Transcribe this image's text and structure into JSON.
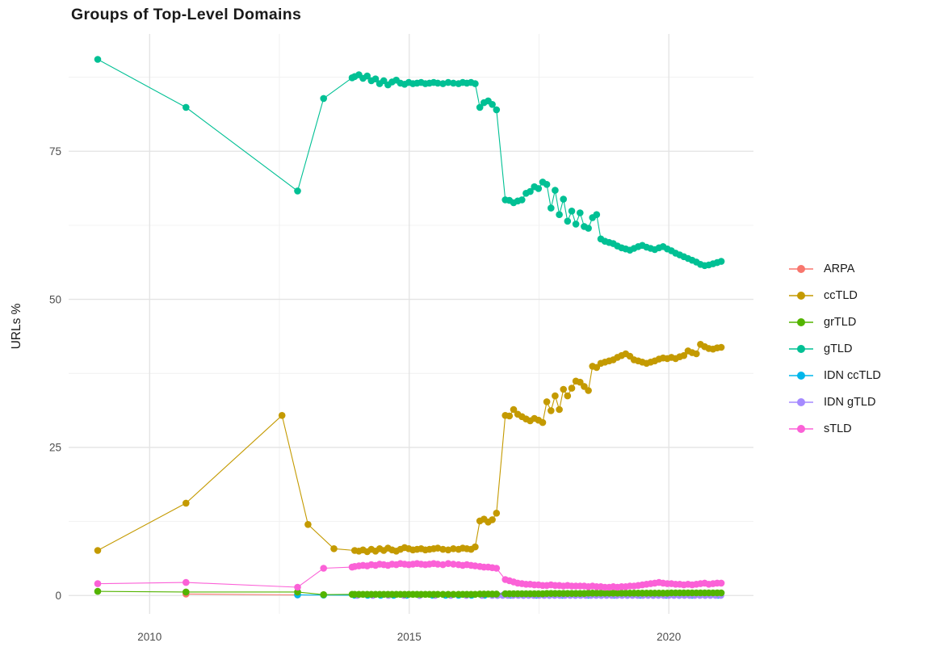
{
  "chart_data": {
    "type": "line",
    "title": "Groups of Top-Level Domains",
    "xlabel": "",
    "ylabel": "URLs %",
    "legend_position": "right",
    "grid": true,
    "x_tick_values": [
      2010,
      2015,
      2020
    ],
    "x_tick_labels": [
      "2010",
      "2015",
      "2020"
    ],
    "x_minor_ticks": [
      2012.5,
      2017.5
    ],
    "y_tick_values": [
      0,
      25,
      50,
      75
    ],
    "y_tick_labels": [
      "0",
      "25",
      "50",
      "75"
    ],
    "y_minor_ticks": [
      12.5,
      37.5,
      62.5,
      87.5
    ],
    "xlim": [
      2008.44,
      2021.63
    ],
    "ylim": [
      -3.1,
      94.8
    ],
    "draw_order": [
      0,
      4,
      5,
      1,
      2,
      3,
      6
    ],
    "series": [
      {
        "name": "ARPA",
        "color": "#F8766D",
        "x": [
          2010.7,
          2012.85
        ],
        "y": [
          0.25,
          0.1
        ]
      },
      {
        "name": "ccTLD",
        "color": "#C49A00",
        "x": [
          2009.0,
          2010.7,
          2012.55,
          2013.05,
          2013.55,
          2013.95,
          2014.03,
          2014.11,
          2014.19,
          2014.27,
          2014.35,
          2014.43,
          2014.51,
          2014.59,
          2014.67,
          2014.75,
          2014.83,
          2014.91,
          2014.99,
          2015.07,
          2015.15,
          2015.23,
          2015.31,
          2015.39,
          2015.47,
          2015.55,
          2015.65,
          2015.75,
          2015.85,
          2015.95,
          2016.03,
          2016.11,
          2016.19,
          2016.27,
          2016.36,
          2016.44,
          2016.52,
          2016.6,
          2016.68,
          2016.85,
          2016.93,
          2017.01,
          2017.09,
          2017.17,
          2017.25,
          2017.33,
          2017.41,
          2017.49,
          2017.57,
          2017.65,
          2017.73,
          2017.81,
          2017.89,
          2017.97,
          2018.05,
          2018.13,
          2018.21,
          2018.29,
          2018.37,
          2018.45,
          2018.53,
          2018.61,
          2018.69,
          2018.77,
          2018.85,
          2018.93,
          2019.01,
          2019.09,
          2019.17,
          2019.25,
          2019.33,
          2019.41,
          2019.49,
          2019.57,
          2019.65,
          2019.73,
          2019.81,
          2019.89,
          2019.97,
          2020.05,
          2020.13,
          2020.21,
          2020.29,
          2020.37,
          2020.45,
          2020.53,
          2020.61,
          2020.69,
          2020.77,
          2020.85,
          2020.93,
          2021.01
        ],
        "y": [
          7.6,
          15.6,
          30.4,
          12.0,
          7.9,
          7.6,
          7.5,
          7.7,
          7.4,
          7.8,
          7.5,
          7.9,
          7.6,
          8.0,
          7.7,
          7.5,
          7.8,
          8.1,
          7.9,
          7.7,
          7.8,
          7.9,
          7.7,
          7.8,
          7.9,
          8.0,
          7.8,
          7.7,
          7.9,
          7.8,
          8.0,
          7.9,
          7.8,
          8.2,
          12.6,
          12.9,
          12.4,
          12.8,
          13.9,
          30.4,
          30.3,
          31.4,
          30.6,
          30.2,
          29.8,
          29.5,
          29.9,
          29.6,
          29.2,
          32.7,
          31.2,
          33.7,
          31.4,
          34.8,
          33.7,
          35.0,
          36.2,
          36.0,
          35.3,
          34.6,
          38.7,
          38.5,
          39.2,
          39.4,
          39.6,
          39.8,
          40.2,
          40.5,
          40.8,
          40.4,
          39.8,
          39.6,
          39.4,
          39.2,
          39.4,
          39.6,
          39.9,
          40.1,
          40.0,
          40.2,
          40.0,
          40.3,
          40.5,
          41.3,
          41.0,
          40.8,
          42.4,
          42.0,
          41.7,
          41.6,
          41.8,
          41.9
        ]
      },
      {
        "name": "grTLD",
        "color": "#53B400",
        "x": [
          2009.0,
          2010.7,
          2012.85,
          2013.35,
          2013.9,
          2013.95,
          2014.03,
          2014.11,
          2014.19,
          2014.27,
          2014.35,
          2014.43,
          2014.51,
          2014.59,
          2014.67,
          2014.75,
          2014.83,
          2014.91,
          2014.99,
          2015.07,
          2015.15,
          2015.23,
          2015.31,
          2015.39,
          2015.47,
          2015.55,
          2015.65,
          2015.75,
          2015.85,
          2015.95,
          2016.03,
          2016.11,
          2016.19,
          2016.27,
          2016.36,
          2016.44,
          2016.52,
          2016.6,
          2016.68,
          2016.85,
          2016.93,
          2017.01,
          2017.09,
          2017.17,
          2017.25,
          2017.33,
          2017.41,
          2017.49,
          2017.57,
          2017.65,
          2017.73,
          2017.81,
          2017.89,
          2017.97,
          2018.05,
          2018.13,
          2018.21,
          2018.29,
          2018.37,
          2018.45,
          2018.53,
          2018.61,
          2018.69,
          2018.77,
          2018.85,
          2018.93,
          2019.01,
          2019.09,
          2019.17,
          2019.25,
          2019.33,
          2019.41,
          2019.49,
          2019.57,
          2019.65,
          2019.73,
          2019.81,
          2019.89,
          2019.97,
          2020.05,
          2020.13,
          2020.21,
          2020.29,
          2020.37,
          2020.45,
          2020.53,
          2020.61,
          2020.69,
          2020.77,
          2020.85,
          2020.93,
          2021.01
        ],
        "y": [
          0.7,
          0.6,
          0.6,
          0.15,
          0.2,
          0.2,
          0.2,
          0.2,
          0.2,
          0.2,
          0.2,
          0.2,
          0.2,
          0.2,
          0.2,
          0.2,
          0.2,
          0.2,
          0.2,
          0.2,
          0.2,
          0.2,
          0.2,
          0.2,
          0.2,
          0.2,
          0.2,
          0.2,
          0.2,
          0.2,
          0.2,
          0.2,
          0.2,
          0.2,
          0.25,
          0.25,
          0.25,
          0.25,
          0.25,
          0.3,
          0.3,
          0.3,
          0.3,
          0.3,
          0.3,
          0.3,
          0.3,
          0.3,
          0.3,
          0.35,
          0.35,
          0.35,
          0.35,
          0.35,
          0.35,
          0.35,
          0.35,
          0.35,
          0.35,
          0.4,
          0.4,
          0.4,
          0.4,
          0.4,
          0.4,
          0.4,
          0.4,
          0.4,
          0.4,
          0.4,
          0.4,
          0.4,
          0.4,
          0.4,
          0.4,
          0.4,
          0.4,
          0.4,
          0.4,
          0.45,
          0.45,
          0.45,
          0.45,
          0.45,
          0.45,
          0.45,
          0.45,
          0.45,
          0.45,
          0.45,
          0.45,
          0.45
        ]
      },
      {
        "name": "gTLD",
        "color": "#00C094",
        "x": [
          2009.0,
          2010.7,
          2012.85,
          2013.35,
          2013.9,
          2013.95,
          2014.03,
          2014.11,
          2014.19,
          2014.27,
          2014.35,
          2014.43,
          2014.51,
          2014.59,
          2014.67,
          2014.75,
          2014.83,
          2014.91,
          2014.99,
          2015.07,
          2015.15,
          2015.23,
          2015.31,
          2015.39,
          2015.47,
          2015.55,
          2015.65,
          2015.75,
          2015.85,
          2015.95,
          2016.03,
          2016.11,
          2016.19,
          2016.27,
          2016.36,
          2016.44,
          2016.52,
          2016.6,
          2016.68,
          2016.85,
          2016.93,
          2017.01,
          2017.09,
          2017.17,
          2017.25,
          2017.33,
          2017.41,
          2017.49,
          2017.57,
          2017.65,
          2017.73,
          2017.81,
          2017.89,
          2017.97,
          2018.05,
          2018.13,
          2018.21,
          2018.29,
          2018.37,
          2018.45,
          2018.53,
          2018.61,
          2018.69,
          2018.77,
          2018.85,
          2018.93,
          2019.01,
          2019.09,
          2019.17,
          2019.25,
          2019.33,
          2019.41,
          2019.49,
          2019.57,
          2019.65,
          2019.73,
          2019.81,
          2019.89,
          2019.97,
          2020.05,
          2020.13,
          2020.21,
          2020.29,
          2020.37,
          2020.45,
          2020.53,
          2020.61,
          2020.69,
          2020.77,
          2020.85,
          2020.93,
          2021.01
        ],
        "y": [
          90.5,
          82.4,
          68.3,
          83.9,
          87.4,
          87.6,
          87.9,
          87.3,
          87.7,
          86.9,
          87.2,
          86.4,
          86.9,
          86.2,
          86.7,
          87.0,
          86.5,
          86.3,
          86.6,
          86.4,
          86.5,
          86.6,
          86.4,
          86.5,
          86.6,
          86.5,
          86.4,
          86.6,
          86.5,
          86.4,
          86.6,
          86.5,
          86.6,
          86.4,
          82.4,
          83.2,
          83.5,
          82.9,
          82.0,
          66.8,
          66.7,
          66.3,
          66.6,
          66.8,
          67.9,
          68.2,
          69.0,
          68.7,
          69.8,
          69.4,
          65.4,
          68.4,
          64.3,
          66.9,
          63.2,
          64.9,
          62.7,
          64.6,
          62.3,
          62.0,
          63.8,
          64.3,
          60.2,
          59.8,
          59.6,
          59.4,
          59.0,
          58.7,
          58.5,
          58.3,
          58.6,
          58.9,
          59.1,
          58.8,
          58.6,
          58.4,
          58.7,
          58.9,
          58.5,
          58.2,
          57.8,
          57.5,
          57.2,
          56.9,
          56.6,
          56.3,
          55.9,
          55.7,
          55.8,
          56.0,
          56.2,
          56.4
        ]
      },
      {
        "name": "IDN ccTLD",
        "color": "#00B6EB",
        "x": [
          2012.85,
          2013.35,
          2013.95,
          2014.2,
          2014.45,
          2014.7,
          2014.95,
          2015.2,
          2015.45,
          2015.7,
          2015.95,
          2016.2,
          2016.45,
          2016.7,
          2016.95,
          2017.2,
          2017.45,
          2017.7,
          2017.95,
          2018.2,
          2018.45,
          2018.7,
          2018.95,
          2019.2,
          2019.45,
          2019.7,
          2019.95,
          2020.2,
          2020.45,
          2020.7,
          2020.95
        ],
        "y": [
          0.12,
          0.08,
          0.05,
          0.05,
          0.05,
          0.05,
          0.05,
          0.05,
          0.05,
          0.05,
          0.05,
          0.05,
          0.05,
          0.05,
          0.05,
          0.05,
          0.05,
          0.05,
          0.05,
          0.05,
          0.05,
          0.05,
          0.05,
          0.05,
          0.05,
          0.05,
          0.05,
          0.05,
          0.05,
          0.05,
          0.05
        ]
      },
      {
        "name": "IDN gTLD",
        "color": "#A58AFF",
        "x": [
          2014.0,
          2014.3,
          2014.6,
          2014.9,
          2015.2,
          2015.5,
          2015.8,
          2016.1,
          2016.4,
          2016.6,
          2016.7,
          2016.8,
          2016.9,
          2017.0,
          2017.1,
          2017.2,
          2017.3,
          2017.4,
          2017.5,
          2017.6,
          2017.7,
          2017.8,
          2017.9,
          2018.0,
          2018.1,
          2018.2,
          2018.3,
          2018.4,
          2018.5,
          2018.6,
          2018.7,
          2018.8,
          2018.9,
          2019.0,
          2019.1,
          2019.2,
          2019.3,
          2019.4,
          2019.5,
          2019.6,
          2019.7,
          2019.8,
          2019.9,
          2020.0,
          2020.1,
          2020.2,
          2020.3,
          2020.4,
          2020.5,
          2020.6,
          2020.7,
          2020.8,
          2020.9,
          2021.0
        ],
        "y": [
          0.02,
          0.02,
          0.02,
          0.02,
          0.02,
          0.02,
          0.02,
          0.02,
          0.02,
          0.02,
          0.02,
          0.02,
          0.02,
          0.02,
          0.02,
          0.02,
          0.02,
          0.02,
          0.02,
          0.02,
          0.02,
          0.02,
          0.02,
          0.02,
          0.02,
          0.02,
          0.02,
          0.02,
          0.02,
          0.02,
          0.02,
          0.02,
          0.02,
          0.02,
          0.02,
          0.02,
          0.02,
          0.02,
          0.02,
          0.02,
          0.02,
          0.02,
          0.02,
          0.02,
          0.02,
          0.02,
          0.02,
          0.02,
          0.02,
          0.02,
          0.02,
          0.02,
          0.02,
          0.02
        ]
      },
      {
        "name": "sTLD",
        "color": "#FB61D7",
        "x": [
          2009.0,
          2010.7,
          2012.85,
          2013.35,
          2013.9,
          2013.95,
          2014.03,
          2014.11,
          2014.19,
          2014.27,
          2014.35,
          2014.43,
          2014.51,
          2014.59,
          2014.67,
          2014.75,
          2014.83,
          2014.91,
          2014.99,
          2015.07,
          2015.15,
          2015.23,
          2015.31,
          2015.39,
          2015.47,
          2015.55,
          2015.65,
          2015.75,
          2015.85,
          2015.95,
          2016.03,
          2016.11,
          2016.19,
          2016.27,
          2016.36,
          2016.44,
          2016.52,
          2016.6,
          2016.68,
          2016.85,
          2016.93,
          2017.01,
          2017.09,
          2017.17,
          2017.25,
          2017.33,
          2017.41,
          2017.49,
          2017.57,
          2017.65,
          2017.73,
          2017.81,
          2017.89,
          2017.97,
          2018.05,
          2018.13,
          2018.21,
          2018.29,
          2018.37,
          2018.45,
          2018.53,
          2018.61,
          2018.69,
          2018.77,
          2018.85,
          2018.93,
          2019.01,
          2019.09,
          2019.17,
          2019.25,
          2019.33,
          2019.41,
          2019.49,
          2019.57,
          2019.65,
          2019.73,
          2019.81,
          2019.89,
          2019.97,
          2020.05,
          2020.13,
          2020.21,
          2020.29,
          2020.37,
          2020.45,
          2020.53,
          2020.61,
          2020.69,
          2020.77,
          2020.85,
          2020.93,
          2021.01
        ],
        "y": [
          2.0,
          2.2,
          1.4,
          4.6,
          4.8,
          4.9,
          5.0,
          5.1,
          5.0,
          5.2,
          5.1,
          5.3,
          5.2,
          5.1,
          5.3,
          5.2,
          5.4,
          5.3,
          5.2,
          5.3,
          5.4,
          5.3,
          5.2,
          5.3,
          5.4,
          5.3,
          5.2,
          5.4,
          5.3,
          5.2,
          5.1,
          5.2,
          5.1,
          5.0,
          4.9,
          4.8,
          4.8,
          4.7,
          4.6,
          2.7,
          2.5,
          2.3,
          2.1,
          2.0,
          1.9,
          1.9,
          1.8,
          1.8,
          1.7,
          1.7,
          1.8,
          1.7,
          1.7,
          1.6,
          1.7,
          1.6,
          1.6,
          1.6,
          1.6,
          1.5,
          1.6,
          1.5,
          1.5,
          1.4,
          1.4,
          1.5,
          1.4,
          1.5,
          1.5,
          1.6,
          1.6,
          1.7,
          1.8,
          1.9,
          2.0,
          2.1,
          2.2,
          2.1,
          2.0,
          2.0,
          1.9,
          1.9,
          1.8,
          1.9,
          1.8,
          1.9,
          2.0,
          2.1,
          1.9,
          2.0,
          2.1,
          2.1
        ]
      }
    ]
  }
}
